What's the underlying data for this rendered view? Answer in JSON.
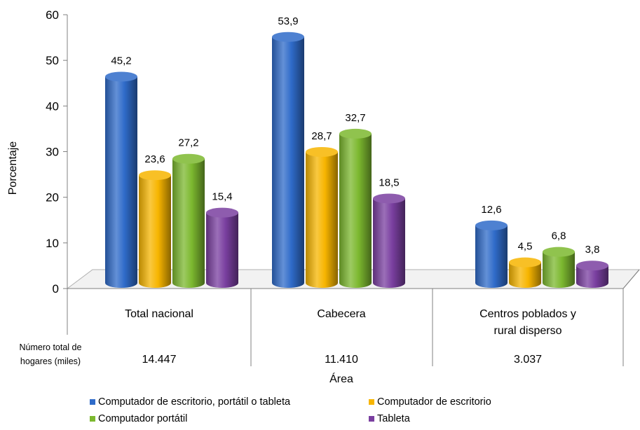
{
  "chart_data": {
    "type": "bar",
    "ylabel": "Porcentaje",
    "xlabel": "Área",
    "ylim": [
      0,
      60
    ],
    "yticks": [
      0,
      10,
      20,
      30,
      40,
      50,
      60
    ],
    "categories": [
      "Total nacional",
      "Cabecera",
      "Centros poblados y rural disperso"
    ],
    "category_lines": [
      [
        "Total nacional"
      ],
      [
        "Cabecera"
      ],
      [
        "Centros poblados y",
        "rural disperso"
      ]
    ],
    "households_label": [
      "Número total de",
      "hogares (miles)"
    ],
    "households": [
      "14.447",
      "11.410",
      "3.037"
    ],
    "series": [
      {
        "name": "Computador de escritorio, portátil o tableta",
        "values": [
          45.2,
          53.9,
          12.6
        ],
        "labels": [
          "45,2",
          "53,9",
          "12,6"
        ],
        "color": "#2f6bc9"
      },
      {
        "name": "Computador de escritorio",
        "values": [
          23.6,
          28.7,
          4.5
        ],
        "labels": [
          "23,6",
          "28,7",
          "4,5"
        ],
        "color": "#f7b500"
      },
      {
        "name": "Computador portátil",
        "values": [
          27.2,
          32.7,
          6.8
        ],
        "labels": [
          "27,2",
          "32,7",
          "6,8"
        ],
        "color": "#7cb82f"
      },
      {
        "name": "Tableta",
        "values": [
          15.4,
          18.5,
          3.8
        ],
        "labels": [
          "15,4",
          "18,5",
          "3,8"
        ],
        "color": "#7a3fa0"
      }
    ],
    "legend_position": "bottom",
    "grid": false
  }
}
